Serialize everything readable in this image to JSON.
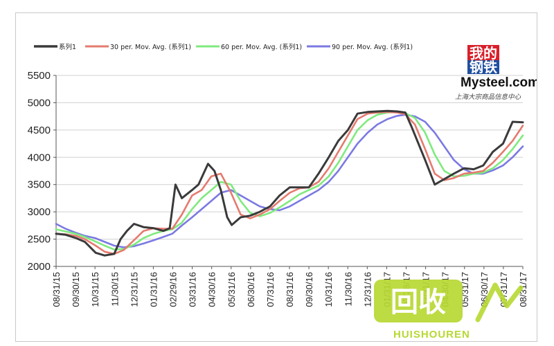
{
  "chart_data": {
    "type": "line",
    "title": "",
    "xlabel": "",
    "ylabel": "",
    "ylim": [
      2000,
      5500
    ],
    "yticks": [
      2000,
      2500,
      3000,
      3500,
      4000,
      4500,
      5000,
      5500
    ],
    "x_range": [
      "2015-08-31",
      "2017-08-31"
    ],
    "xticks": [
      "08/31/15",
      "09/30/15",
      "10/31/15",
      "11/30/15",
      "12/31/15",
      "01/31/16",
      "02/29/16",
      "03/31/16",
      "04/30/16",
      "05/31/16",
      "06/30/16",
      "07/31/16",
      "08/31/16",
      "09/30/16",
      "10/31/16",
      "11/30/16",
      "12/31/16",
      "01/31/17",
      "02/28/17",
      "03/31/17",
      "04/30/17",
      "05/31/17",
      "06/30/17",
      "07/31/17",
      "08/31/17"
    ],
    "grid": "horizontal",
    "legend_position": "top-left",
    "series": [
      {
        "name": "系列1",
        "color": "#3a3a3a",
        "width": 3,
        "x": [
          "2015-08-31",
          "2015-09-15",
          "2015-10-01",
          "2015-10-15",
          "2015-11-01",
          "2015-11-15",
          "2015-11-30",
          "2015-12-10",
          "2015-12-20",
          "2015-12-31",
          "2016-01-15",
          "2016-01-31",
          "2016-02-15",
          "2016-02-25",
          "2016-03-05",
          "2016-03-15",
          "2016-03-31",
          "2016-04-10",
          "2016-04-25",
          "2016-05-05",
          "2016-05-15",
          "2016-05-25",
          "2016-06-01",
          "2016-06-15",
          "2016-06-30",
          "2016-07-15",
          "2016-07-31",
          "2016-08-15",
          "2016-08-31",
          "2016-09-15",
          "2016-09-30",
          "2016-10-15",
          "2016-10-31",
          "2016-11-15",
          "2016-11-30",
          "2016-12-15",
          "2016-12-31",
          "2017-01-15",
          "2017-01-31",
          "2017-02-15",
          "2017-02-28",
          "2017-03-10",
          "2017-03-31",
          "2017-04-15",
          "2017-04-30",
          "2017-05-15",
          "2017-05-31",
          "2017-06-15",
          "2017-06-30",
          "2017-07-15",
          "2017-07-31",
          "2017-08-15",
          "2017-08-31"
        ],
        "y": [
          2600,
          2580,
          2520,
          2450,
          2250,
          2200,
          2230,
          2500,
          2650,
          2780,
          2720,
          2700,
          2650,
          2700,
          3500,
          3250,
          3400,
          3500,
          3880,
          3750,
          3400,
          2900,
          2760,
          2900,
          2930,
          3000,
          3100,
          3300,
          3450,
          3450,
          3450,
          3700,
          4000,
          4300,
          4500,
          4800,
          4830,
          4840,
          4850,
          4840,
          4820,
          4550,
          3950,
          3500,
          3600,
          3700,
          3800,
          3780,
          3850,
          4100,
          4250,
          4650,
          4640
        ]
      },
      {
        "name": "30 per. Mov. Avg. (系列1)",
        "color": "#e57a6e",
        "width": 2.6,
        "x": [
          "2015-08-31",
          "2015-09-15",
          "2015-10-01",
          "2015-10-15",
          "2015-11-01",
          "2015-11-15",
          "2015-11-30",
          "2015-12-15",
          "2015-12-31",
          "2016-01-15",
          "2016-01-31",
          "2016-02-15",
          "2016-02-29",
          "2016-03-15",
          "2016-03-31",
          "2016-04-15",
          "2016-04-30",
          "2016-05-15",
          "2016-05-31",
          "2016-06-15",
          "2016-06-30",
          "2016-07-15",
          "2016-07-31",
          "2016-08-15",
          "2016-08-31",
          "2016-09-15",
          "2016-09-30",
          "2016-10-15",
          "2016-10-31",
          "2016-11-15",
          "2016-11-30",
          "2016-12-15",
          "2016-12-31",
          "2017-01-15",
          "2017-01-31",
          "2017-02-15",
          "2017-02-28",
          "2017-03-15",
          "2017-03-31",
          "2017-04-15",
          "2017-04-30",
          "2017-05-15",
          "2017-05-31",
          "2017-06-15",
          "2017-06-30",
          "2017-07-15",
          "2017-07-31",
          "2017-08-15",
          "2017-08-31"
        ],
        "y": [
          2600,
          2590,
          2560,
          2500,
          2380,
          2270,
          2230,
          2300,
          2480,
          2650,
          2700,
          2690,
          2690,
          2950,
          3300,
          3400,
          3650,
          3700,
          3350,
          2950,
          2880,
          2950,
          3050,
          3200,
          3350,
          3430,
          3450,
          3550,
          3800,
          4100,
          4400,
          4700,
          4800,
          4820,
          4830,
          4820,
          4790,
          4600,
          4150,
          3700,
          3580,
          3620,
          3700,
          3720,
          3750,
          3900,
          4100,
          4300,
          4580
        ]
      },
      {
        "name": "60 per. Mov. Avg. (系列1)",
        "color": "#7fea7e",
        "width": 2.6,
        "x": [
          "2015-08-31",
          "2015-09-15",
          "2015-09-30",
          "2015-10-15",
          "2015-10-31",
          "2015-11-15",
          "2015-11-30",
          "2015-12-15",
          "2015-12-31",
          "2016-01-15",
          "2016-01-31",
          "2016-02-15",
          "2016-02-29",
          "2016-03-15",
          "2016-03-31",
          "2016-04-15",
          "2016-04-30",
          "2016-05-15",
          "2016-05-31",
          "2016-06-15",
          "2016-06-30",
          "2016-07-15",
          "2016-07-31",
          "2016-08-15",
          "2016-08-31",
          "2016-09-15",
          "2016-09-30",
          "2016-10-15",
          "2016-10-31",
          "2016-11-15",
          "2016-11-30",
          "2016-12-15",
          "2016-12-31",
          "2017-01-15",
          "2017-01-31",
          "2017-02-15",
          "2017-02-28",
          "2017-03-15",
          "2017-03-31",
          "2017-04-15",
          "2017-04-30",
          "2017-05-15",
          "2017-05-31",
          "2017-06-15",
          "2017-06-30",
          "2017-07-15",
          "2017-07-31",
          "2017-08-15",
          "2017-08-31"
        ],
        "y": [
          2680,
          2640,
          2600,
          2540,
          2460,
          2380,
          2310,
          2320,
          2400,
          2520,
          2600,
          2650,
          2680,
          2800,
          3050,
          3250,
          3400,
          3550,
          3500,
          3200,
          2980,
          2920,
          2980,
          3080,
          3200,
          3320,
          3400,
          3480,
          3650,
          3900,
          4200,
          4500,
          4680,
          4780,
          4820,
          4830,
          4810,
          4720,
          4450,
          4050,
          3750,
          3650,
          3660,
          3700,
          3720,
          3800,
          3950,
          4150,
          4400
        ]
      },
      {
        "name": "90 per. Mov. Avg. (系列1)",
        "color": "#7b79e2",
        "width": 2.6,
        "x": [
          "2015-08-31",
          "2015-09-15",
          "2015-09-30",
          "2015-10-15",
          "2015-10-31",
          "2015-11-15",
          "2015-11-30",
          "2015-12-15",
          "2015-12-31",
          "2016-01-15",
          "2016-01-31",
          "2016-02-15",
          "2016-02-29",
          "2016-03-15",
          "2016-03-31",
          "2016-04-15",
          "2016-04-30",
          "2016-05-15",
          "2016-05-31",
          "2016-06-15",
          "2016-06-30",
          "2016-07-15",
          "2016-07-31",
          "2016-08-15",
          "2016-08-31",
          "2016-09-15",
          "2016-09-30",
          "2016-10-15",
          "2016-10-31",
          "2016-11-15",
          "2016-11-30",
          "2016-12-15",
          "2016-12-31",
          "2017-01-15",
          "2017-01-31",
          "2017-02-15",
          "2017-02-28",
          "2017-03-15",
          "2017-03-31",
          "2017-04-15",
          "2017-04-30",
          "2017-05-15",
          "2017-05-31",
          "2017-06-15",
          "2017-06-30",
          "2017-07-15",
          "2017-07-31",
          "2017-08-15",
          "2017-08-31"
        ],
        "y": [
          2780,
          2690,
          2620,
          2560,
          2520,
          2450,
          2380,
          2350,
          2370,
          2420,
          2480,
          2540,
          2600,
          2750,
          2900,
          3050,
          3200,
          3350,
          3400,
          3300,
          3200,
          3100,
          3050,
          3030,
          3100,
          3200,
          3300,
          3400,
          3550,
          3750,
          4000,
          4250,
          4450,
          4600,
          4700,
          4760,
          4780,
          4750,
          4650,
          4450,
          4200,
          3950,
          3780,
          3700,
          3700,
          3760,
          3850,
          4000,
          4200
        ]
      }
    ]
  },
  "brand": {
    "cn": [
      "我的",
      "钢铁"
    ],
    "en": "Mysteel.com",
    "sub": "上海大宗商品信息中心",
    "red": "#d8202a",
    "blue": "#1f4fa0"
  },
  "watermark": {
    "cn": "回收",
    "en": "HUISHOUREN",
    "green": "#b7d832"
  }
}
